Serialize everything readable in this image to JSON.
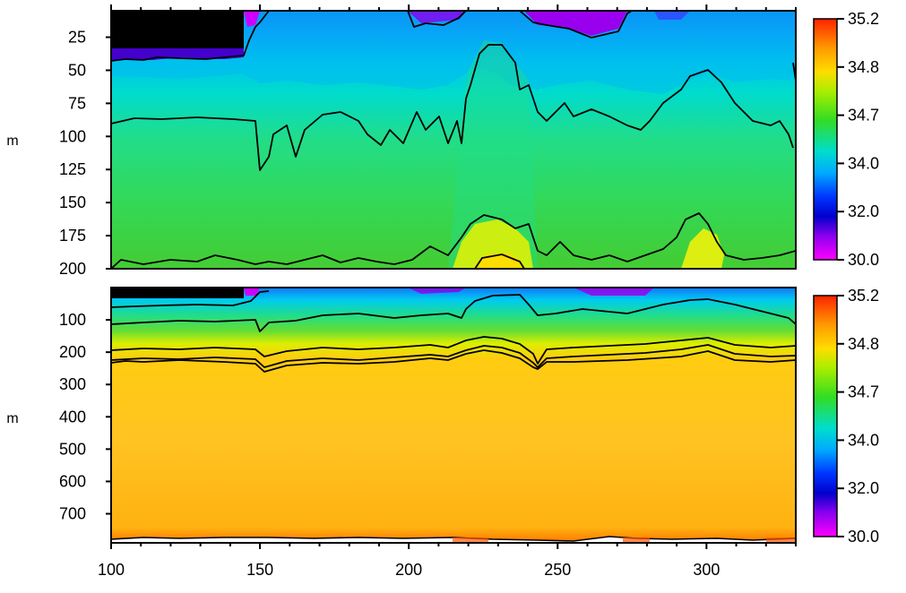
{
  "chart_data": [
    {
      "type": "heatmap",
      "title": "",
      "xlabel": "",
      "ylabel": "m",
      "xlim": [
        100,
        330
      ],
      "ylim": [
        200,
        5
      ],
      "x_ticks": [
        100,
        150,
        200,
        250,
        300
      ],
      "y_ticks": [
        25,
        50,
        75,
        100,
        125,
        150,
        175,
        200
      ],
      "colorbar": {
        "range": [
          30.0,
          35.2
        ],
        "ticks": [
          "35.2",
          "34.8",
          "34.7",
          "34.0",
          "32.0",
          "30.0"
        ],
        "colors": [
          "#ff3300",
          "#ffaa00",
          "#ddee00",
          "#33dd33",
          "#00ddee",
          "#0088ff",
          "#0011cc",
          "#8800ee",
          "#ff00ff"
        ]
      },
      "regions": [
        {
          "name": "shallow-black",
          "x": [
            100,
            144
          ],
          "depth": [
            5,
            35
          ],
          "color": "#000000"
        },
        {
          "name": "fresh-surface",
          "value_range": [
            30.0,
            32.0
          ]
        },
        {
          "name": "upper-layer",
          "value_range": [
            32.0,
            34.0
          ]
        },
        {
          "name": "mid-layer",
          "value_range": [
            34.0,
            34.7
          ]
        },
        {
          "name": "saline-pockets",
          "value_range": [
            34.7,
            34.8
          ]
        }
      ],
      "contour_levels": [
        32.0,
        34.0,
        34.7,
        34.8
      ],
      "grid": false,
      "legend": "right"
    },
    {
      "type": "heatmap",
      "title": "",
      "xlabel": "",
      "ylabel": "m",
      "xlim": [
        100,
        330
      ],
      "ylim": [
        790,
        0
      ],
      "x_ticks": [
        100,
        150,
        200,
        250,
        300
      ],
      "y_ticks": [
        100,
        200,
        300,
        400,
        500,
        600,
        700
      ],
      "colorbar": {
        "range": [
          30.0,
          35.2
        ],
        "ticks": [
          "35.2",
          "34.8",
          "34.7",
          "34.0",
          "32.0",
          "30.0"
        ],
        "colors": [
          "#ff3300",
          "#ffaa00",
          "#ddee00",
          "#33dd33",
          "#00ddee",
          "#0088ff",
          "#0011cc",
          "#8800ee",
          "#ff00ff"
        ]
      },
      "regions": [
        {
          "name": "shallow-black",
          "x": [
            100,
            144
          ],
          "depth": [
            0,
            15
          ],
          "color": "#000000"
        },
        {
          "name": "deep-layer",
          "value_range": [
            34.8,
            35.0
          ]
        },
        {
          "name": "bottom-no-data",
          "depth": [
            770,
            790
          ],
          "color": "#ffffff"
        }
      ],
      "contour_levels": [
        34.0,
        34.7,
        34.8
      ],
      "grid": false,
      "legend": "right"
    }
  ]
}
